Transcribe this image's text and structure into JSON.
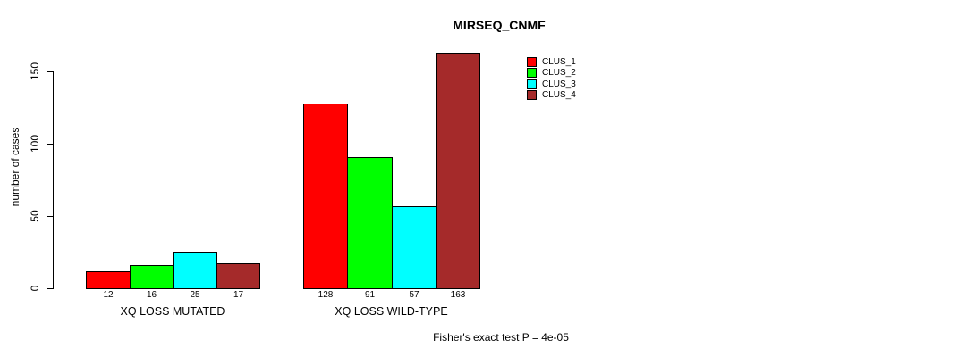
{
  "chart_data": {
    "type": "bar",
    "title": "MIRSEQ_CNMF",
    "ylabel": "number of cases",
    "xlabel": "",
    "ylim": [
      0,
      150
    ],
    "yticks": [
      0,
      50,
      100,
      150
    ],
    "grid": false,
    "legend_position": "top-right",
    "bar_value_labels": true,
    "categories": [
      "XQ LOSS MUTATED",
      "XQ LOSS WILD-TYPE"
    ],
    "series": [
      {
        "name": "CLUS_1",
        "color": "#ff0000",
        "values": [
          12,
          128
        ]
      },
      {
        "name": "CLUS_2",
        "color": "#00ff00",
        "values": [
          16,
          91
        ]
      },
      {
        "name": "CLUS_3",
        "color": "#00ffff",
        "values": [
          25,
          57
        ]
      },
      {
        "name": "CLUS_4",
        "color": "#a52a2a",
        "values": [
          17,
          163
        ]
      }
    ],
    "annotation": "Fisher's exact test P = 4e-05"
  }
}
